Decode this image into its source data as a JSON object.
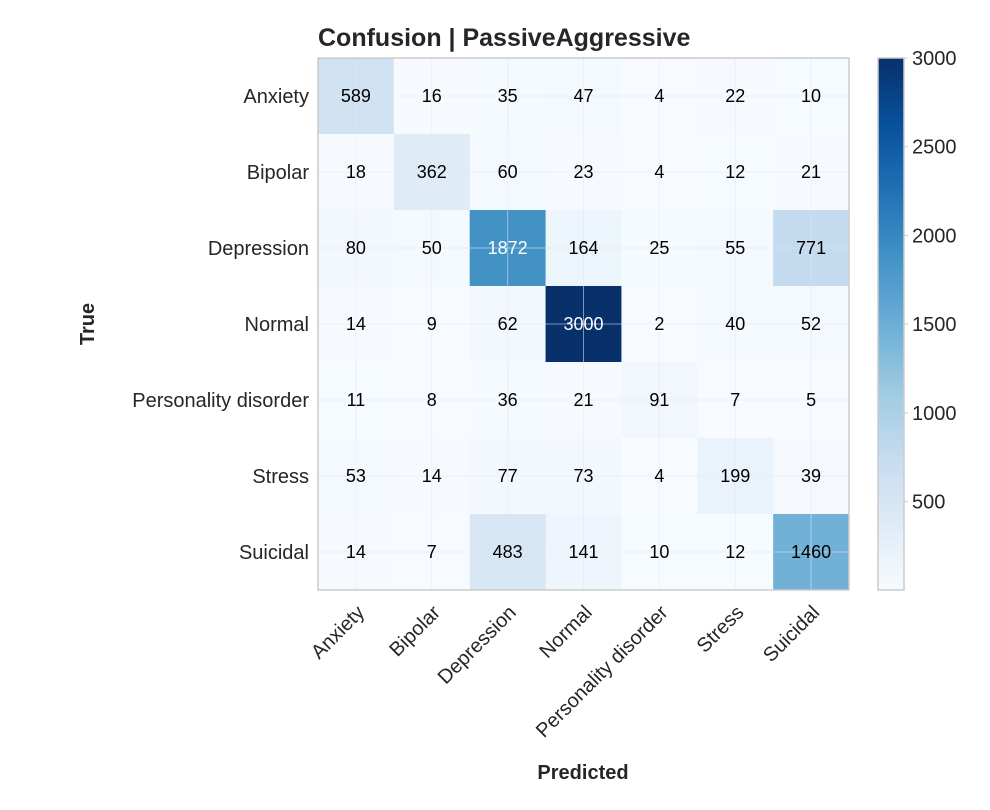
{
  "chart_data": {
    "type": "heatmap",
    "title": "Confusion | PassiveAggressive",
    "xlabel": "Predicted",
    "ylabel": "True",
    "x_categories": [
      "Anxiety",
      "Bipolar",
      "Depression",
      "Normal",
      "Personality disorder",
      "Stress",
      "Suicidal"
    ],
    "y_categories": [
      "Anxiety",
      "Bipolar",
      "Depression",
      "Normal",
      "Personality disorder",
      "Stress",
      "Suicidal"
    ],
    "values": [
      [
        589,
        16,
        35,
        47,
        4,
        22,
        10
      ],
      [
        18,
        362,
        60,
        23,
        4,
        12,
        21
      ],
      [
        80,
        50,
        1872,
        164,
        25,
        55,
        771
      ],
      [
        14,
        9,
        62,
        3000,
        2,
        40,
        52
      ],
      [
        11,
        8,
        36,
        21,
        91,
        7,
        5
      ],
      [
        53,
        14,
        77,
        73,
        4,
        199,
        39
      ],
      [
        14,
        7,
        483,
        141,
        10,
        12,
        1460
      ]
    ],
    "colormap": "Blues",
    "vmin": 2,
    "vmax": 3000,
    "colorbar_ticks": [
      500,
      1000,
      1500,
      2000,
      2500,
      3000
    ],
    "grid": true
  }
}
